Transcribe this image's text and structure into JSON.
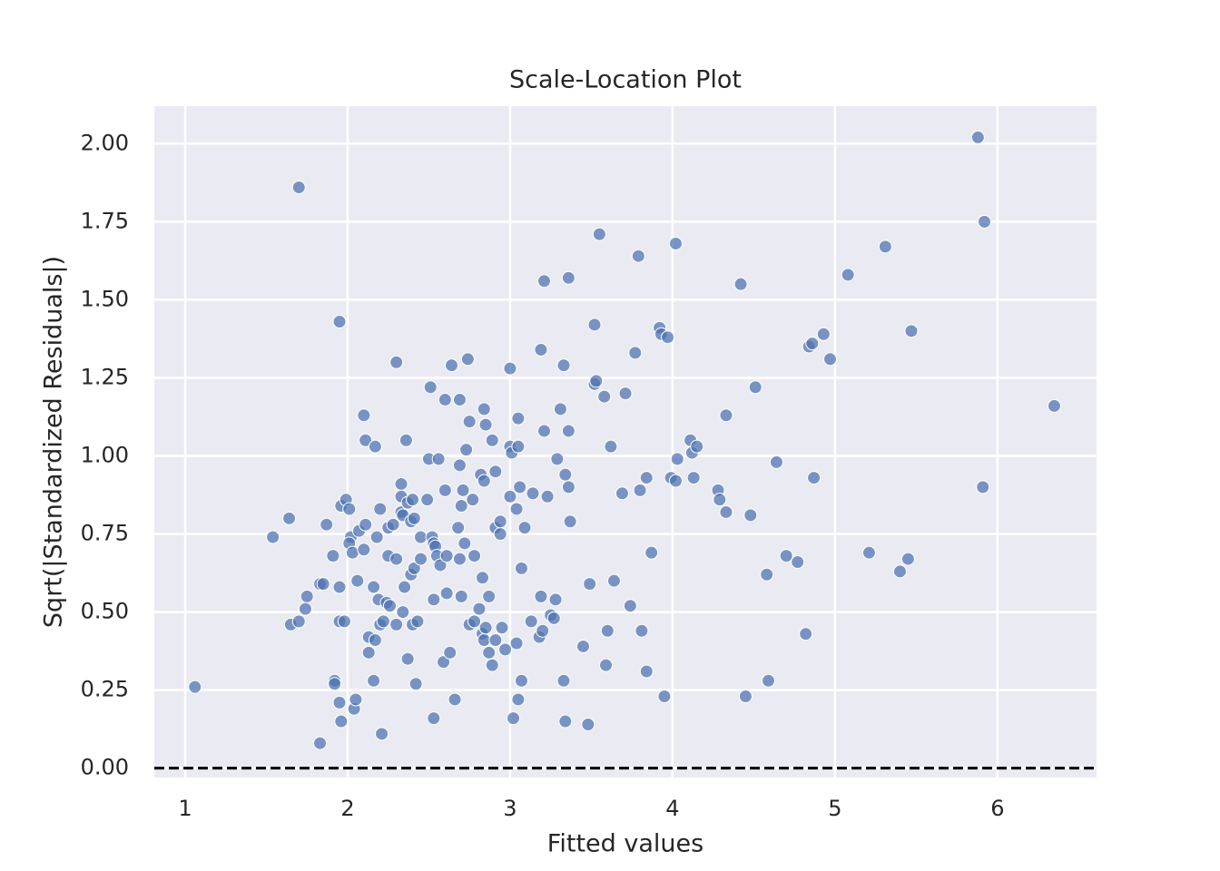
{
  "chart_data": {
    "type": "scatter",
    "title": "Scale-Location Plot",
    "x_label": "Fitted values",
    "y_label": "Sqrt(|Standardized Residuals|)",
    "color": "#4c72b0",
    "grid": true,
    "background": "#eaeaf2",
    "reference_line": {
      "y": 0,
      "color": "#000000",
      "style": "dashed"
    },
    "xlim": [
      0.81,
      6.61
    ],
    "ylim": [
      -0.03,
      2.12
    ],
    "xticks": [
      1,
      2,
      3,
      4,
      5,
      6
    ],
    "yticks": [
      {
        "value": 0,
        "label": "0.00"
      },
      {
        "value": 0.25,
        "label": "0.25"
      },
      {
        "value": 0.5,
        "label": "0.50"
      },
      {
        "value": 0.75,
        "label": "0.75"
      },
      {
        "value": 1,
        "label": "1.00"
      },
      {
        "value": 1.25,
        "label": "1.25"
      },
      {
        "value": 1.5,
        "label": "1.50"
      },
      {
        "value": 1.75,
        "label": "1.75"
      },
      {
        "value": 2,
        "label": "2.00"
      }
    ],
    "x": [
      1.06,
      1.54,
      1.64,
      1.7,
      1.65,
      1.7,
      1.74,
      1.75,
      1.83,
      1.85,
      1.87,
      1.83,
      1.91,
      1.92,
      1.92,
      1.95,
      1.95,
      1.95,
      1.98,
      1.95,
      1.96,
      1.96,
      1.99,
      2.01,
      2.02,
      2.01,
      2.03,
      2.04,
      2.05,
      2.06,
      2.07,
      2.1,
      2.11,
      2.1,
      2.11,
      2.13,
      2.13,
      2.16,
      2.17,
      2.16,
      2.17,
      2.18,
      2.2,
      2.19,
      2.21,
      2.2,
      2.22,
      2.24,
      2.25,
      2.25,
      2.26,
      2.28,
      2.3,
      2.3,
      2.3,
      2.33,
      2.33,
      2.33,
      2.34,
      2.34,
      2.35,
      2.36,
      2.37,
      2.37,
      2.39,
      2.39,
      2.4,
      2.41,
      2.41,
      2.4,
      2.43,
      2.42,
      2.45,
      2.45,
      2.5,
      2.49,
      2.51,
      2.52,
      2.53,
      2.53,
      2.53,
      2.54,
      2.55,
      2.56,
      2.57,
      2.59,
      2.6,
      2.6,
      2.61,
      2.61,
      2.63,
      2.64,
      2.66,
      2.69,
      2.69,
      2.68,
      2.69,
      2.7,
      2.7,
      2.71,
      2.72,
      2.73,
      2.74,
      2.75,
      2.77,
      2.75,
      2.78,
      2.78,
      2.81,
      2.82,
      2.83,
      2.83,
      2.84,
      2.85,
      2.84,
      2.84,
      2.85,
      2.87,
      2.87,
      2.89,
      2.89,
      2.91,
      2.91,
      2.91,
      2.94,
      2.94,
      2.95,
      2.97,
      3.0,
      3.0,
      3.0,
      3.01,
      3.02,
      3.04,
      3.04,
      3.05,
      3.05,
      3.05,
      3.06,
      3.07,
      3.07,
      3.09,
      3.13,
      3.14,
      3.18,
      3.19,
      3.19,
      3.2,
      3.21,
      3.21,
      3.23,
      3.25,
      3.27,
      3.28,
      3.29,
      3.31,
      3.33,
      3.33,
      3.34,
      3.34,
      3.36,
      3.36,
      3.36,
      3.37,
      3.45,
      3.48,
      3.49,
      3.52,
      3.52,
      3.53,
      3.55,
      3.58,
      3.59,
      3.6,
      3.62,
      3.64,
      3.69,
      3.71,
      3.74,
      3.77,
      3.79,
      3.8,
      3.81,
      3.84,
      3.84,
      3.87,
      3.92,
      3.93,
      3.95,
      3.97,
      3.99,
      4.02,
      4.02,
      4.03,
      4.11,
      4.12,
      4.13,
      4.15,
      4.28,
      4.29,
      4.33,
      4.33,
      4.42,
      4.45,
      4.48,
      4.51,
      4.58,
      4.59,
      4.64,
      4.7,
      4.77,
      4.82,
      4.84,
      4.86,
      4.87,
      4.93,
      4.97,
      5.08,
      5.21,
      5.31,
      5.4,
      5.45,
      5.47,
      5.88,
      5.92,
      5.91,
      6.35
    ],
    "values": [
      0.26,
      0.74,
      0.8,
      1.86,
      0.46,
      0.47,
      0.51,
      0.55,
      0.59,
      0.59,
      0.78,
      0.08,
      0.68,
      0.28,
      0.27,
      1.43,
      0.58,
      0.47,
      0.47,
      0.21,
      0.15,
      0.84,
      0.86,
      0.83,
      0.74,
      0.72,
      0.69,
      0.19,
      0.22,
      0.6,
      0.76,
      1.13,
      1.05,
      0.7,
      0.78,
      0.42,
      0.37,
      0.28,
      1.03,
      0.58,
      0.41,
      0.74,
      0.83,
      0.54,
      0.11,
      0.46,
      0.47,
      0.53,
      0.77,
      0.68,
      0.52,
      0.78,
      1.3,
      0.46,
      0.67,
      0.91,
      0.82,
      0.87,
      0.81,
      0.5,
      0.58,
      1.05,
      0.85,
      0.35,
      0.79,
      0.62,
      0.86,
      0.8,
      0.64,
      0.46,
      0.47,
      0.27,
      0.74,
      0.67,
      0.99,
      0.86,
      1.22,
      0.74,
      0.54,
      0.16,
      0.72,
      0.71,
      0.68,
      0.99,
      0.65,
      0.34,
      0.89,
      1.18,
      0.56,
      0.68,
      0.37,
      1.29,
      0.22,
      1.18,
      0.97,
      0.77,
      0.67,
      0.55,
      0.84,
      0.89,
      0.72,
      1.02,
      1.31,
      1.11,
      0.86,
      0.46,
      0.47,
      0.68,
      0.51,
      0.94,
      0.43,
      0.61,
      0.41,
      1.1,
      1.15,
      0.92,
      0.45,
      0.55,
      0.37,
      1.05,
      0.33,
      0.95,
      0.41,
      0.77,
      0.75,
      0.79,
      0.45,
      0.38,
      1.28,
      1.03,
      0.87,
      1.01,
      0.16,
      0.4,
      0.83,
      1.12,
      0.22,
      1.03,
      0.9,
      0.64,
      0.28,
      0.77,
      0.47,
      0.88,
      0.42,
      1.34,
      0.55,
      0.44,
      1.08,
      1.56,
      0.87,
      0.49,
      0.48,
      0.54,
      0.99,
      1.15,
      1.29,
      0.28,
      0.15,
      0.94,
      0.9,
      1.08,
      1.57,
      0.79,
      0.39,
      0.14,
      0.59,
      1.42,
      1.23,
      1.24,
      1.71,
      1.19,
      0.33,
      0.44,
      1.03,
      0.6,
      0.88,
      1.2,
      0.52,
      1.33,
      1.64,
      0.89,
      0.44,
      0.93,
      0.31,
      0.69,
      1.41,
      1.39,
      0.23,
      1.38,
      0.93,
      1.68,
      0.92,
      0.99,
      1.05,
      1.01,
      0.93,
      1.03,
      0.89,
      0.86,
      1.13,
      0.82,
      1.55,
      0.23,
      0.81,
      1.22,
      0.62,
      0.28,
      0.98,
      0.68,
      0.66,
      0.43,
      1.35,
      1.36,
      0.93,
      1.39,
      1.31,
      1.58,
      0.69,
      1.67,
      0.63,
      0.67,
      1.4,
      2.02,
      1.75,
      0.9,
      1.16
    ]
  }
}
